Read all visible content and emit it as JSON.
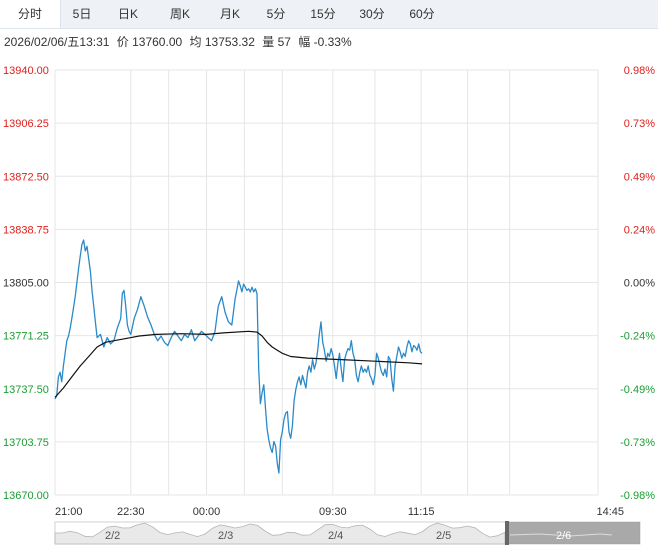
{
  "tabs": [
    {
      "label": "分时",
      "active": true
    },
    {
      "label": "5日",
      "active": false
    },
    {
      "label": "日K",
      "active": false
    },
    {
      "label": "周K",
      "active": false
    },
    {
      "label": "月K",
      "active": false
    },
    {
      "label": "5分",
      "active": false
    },
    {
      "label": "15分",
      "active": false
    },
    {
      "label": "30分",
      "active": false
    },
    {
      "label": "60分",
      "active": false
    }
  ],
  "info": {
    "datetime": "2026/02/06/五13:31",
    "price": "价 13760.00",
    "avg": "均 13753.32",
    "volume": "量 57",
    "change": "幅 -0.33%"
  },
  "colors": {
    "up": "#e0201c",
    "down": "#1a9e33",
    "price_line": "#2a8ac9",
    "avg_line": "#111111",
    "grid": "#e6e6e6",
    "navigator_fill": "#e9e9e9",
    "navigator_selected": "#9a9a9a"
  },
  "chart_data": {
    "type": "line",
    "xlim": [
      "21:00",
      "14:45"
    ],
    "ylim": [
      13670.0,
      13940.0
    ],
    "base_price": 13805.0,
    "y_ticks": [
      {
        "price": "13940.00",
        "pct": "0.98%",
        "dir": "up"
      },
      {
        "price": "13906.25",
        "pct": "0.73%",
        "dir": "up"
      },
      {
        "price": "13872.50",
        "pct": "0.49%",
        "dir": "up"
      },
      {
        "price": "13838.75",
        "pct": "0.24%",
        "dir": "up"
      },
      {
        "price": "13805.00",
        "pct": "0.00%",
        "dir": "flat"
      },
      {
        "price": "13771.25",
        "pct": "-0.24%",
        "dir": "down"
      },
      {
        "price": "13737.50",
        "pct": "-0.49%",
        "dir": "down"
      },
      {
        "price": "13703.75",
        "pct": "-0.73%",
        "dir": "down"
      },
      {
        "price": "13670.00",
        "pct": "-0.98%",
        "dir": "down"
      }
    ],
    "x_ticks": [
      "21:00",
      "22:30",
      "00:00",
      "09:30",
      "11:15",
      "14:45"
    ],
    "x_tick_minutes": [
      0,
      90,
      180,
      330,
      435,
      645
    ],
    "series": [
      {
        "role": "price",
        "x": [
          0,
          2,
          4,
          6,
          8,
          10,
          12,
          14,
          16,
          18,
          20,
          22,
          24,
          26,
          28,
          30,
          32,
          34,
          36,
          38,
          40,
          42,
          44,
          46,
          48,
          50,
          54,
          58,
          62,
          66,
          70,
          74,
          78,
          80,
          82,
          84,
          86,
          88,
          90,
          94,
          98,
          102,
          106,
          110,
          114,
          118,
          122,
          126,
          130,
          134,
          138,
          142,
          146,
          150,
          154,
          158,
          162,
          166,
          170,
          174,
          178,
          182,
          186,
          190,
          194,
          198,
          202,
          206,
          210,
          214,
          216,
          218,
          220,
          222,
          224,
          226,
          228,
          230,
          232,
          234,
          236,
          238,
          240,
          241,
          242,
          244,
          246,
          248,
          250,
          252,
          254,
          256,
          258,
          260,
          262,
          264,
          266,
          268,
          270,
          272,
          274,
          276,
          278,
          280,
          282,
          284,
          286,
          288,
          290,
          292,
          294,
          296,
          298,
          300,
          302,
          304,
          306,
          308,
          310,
          312,
          314,
          316,
          318,
          320,
          322,
          324,
          326,
          328,
          330,
          332,
          334,
          336,
          338,
          340,
          342,
          344,
          346,
          348,
          350,
          352,
          354,
          356,
          358,
          360,
          362,
          364,
          366,
          368,
          370,
          372,
          374,
          376,
          378,
          380,
          382,
          384,
          386,
          388,
          390,
          392,
          394,
          396,
          398,
          400,
          402,
          404,
          406,
          408,
          410,
          412,
          414,
          416,
          418,
          420,
          422,
          424,
          426,
          428,
          430,
          432,
          434,
          436
        ],
        "values": [
          13731,
          13733,
          13745,
          13748,
          13742,
          13752,
          13760,
          13768,
          13771,
          13776,
          13782,
          13789,
          13796,
          13805,
          13814,
          13822,
          13829,
          13832,
          13825,
          13828,
          13820,
          13812,
          13800,
          13790,
          13780,
          13770,
          13772,
          13764,
          13770,
          13766,
          13768,
          13776,
          13782,
          13798,
          13800,
          13790,
          13778,
          13774,
          13772,
          13782,
          13788,
          13796,
          13790,
          13783,
          13778,
          13772,
          13768,
          13771,
          13767,
          13765,
          13770,
          13774,
          13771,
          13768,
          13772,
          13770,
          13775,
          13768,
          13771,
          13774,
          13772,
          13770,
          13768,
          13774,
          13790,
          13796,
          13786,
          13780,
          13778,
          13795,
          13800,
          13806,
          13803,
          13799,
          13804,
          13802,
          13800,
          13801,
          13799,
          13802,
          13799,
          13801,
          13798,
          13772,
          13750,
          13728,
          13735,
          13740,
          13725,
          13712,
          13705,
          13700,
          13697,
          13704,
          13701,
          13690,
          13684,
          13705,
          13710,
          13718,
          13722,
          13723,
          13710,
          13706,
          13714,
          13730,
          13737,
          13742,
          13745,
          13740,
          13746,
          13742,
          13738,
          13748,
          13752,
          13748,
          13756,
          13750,
          13754,
          13762,
          13772,
          13780,
          13767,
          13762,
          13755,
          13760,
          13758,
          13763,
          13759,
          13752,
          13744,
          13754,
          13760,
          13750,
          13742,
          13756,
          13760,
          13763,
          13762,
          13768,
          13760,
          13756,
          13746,
          13742,
          13748,
          13752,
          13748,
          13750,
          13748,
          13752,
          13746,
          13744,
          13740,
          13746,
          13760,
          13757,
          13752,
          13748,
          13746,
          13750,
          13745,
          13758,
          13756,
          13744,
          13736,
          13752,
          13758,
          13764,
          13761,
          13757,
          13760,
          13758,
          13764,
          13768,
          13766,
          13761,
          13765,
          13764,
          13762,
          13766,
          13761,
          13760
        ]
      },
      {
        "role": "average",
        "x": [
          0,
          10,
          20,
          30,
          40,
          50,
          60,
          70,
          80,
          100,
          120,
          150,
          180,
          200,
          230,
          240,
          246,
          252,
          258,
          264,
          270,
          280,
          300,
          340,
          380,
          420,
          436
        ],
        "values": [
          13732,
          13738,
          13745,
          13752,
          13758,
          13764,
          13767,
          13768,
          13769,
          13771,
          13772,
          13772.5,
          13772,
          13773,
          13774,
          13773.5,
          13771,
          13767,
          13764,
          13762,
          13760,
          13758,
          13757,
          13756,
          13755,
          13754,
          13753.3
        ]
      }
    ],
    "navigator": {
      "day_labels": [
        "2/2",
        "2/3",
        "2/4",
        "2/5",
        "2/6"
      ],
      "selected_day": "2/6"
    }
  }
}
